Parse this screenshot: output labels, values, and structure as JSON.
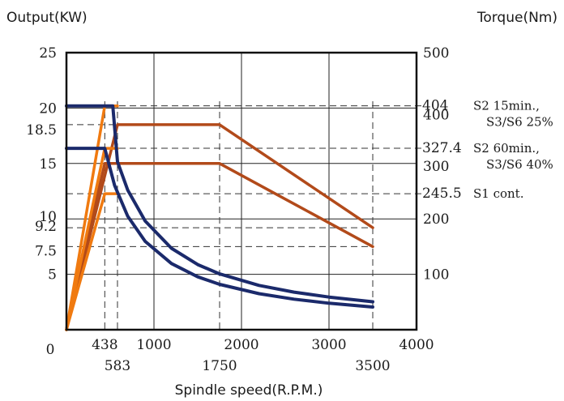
{
  "chart_data": {
    "type": "line",
    "left_axis_label": "Output(KW)",
    "right_axis_label": "Torque(Nm)",
    "xlabel": "Spindle speed(R.P.M.)",
    "xlim": [
      0,
      4000
    ],
    "ylim_left": [
      0,
      25
    ],
    "ylim_right": [
      0,
      500
    ],
    "x_ticks_top": [
      {
        "value": 438,
        "label": "438"
      },
      {
        "value": 1000,
        "label": "1000"
      },
      {
        "value": 2000,
        "label": "2000"
      },
      {
        "value": 3000,
        "label": "3000"
      },
      {
        "value": 4000,
        "label": "4000"
      }
    ],
    "x_ticks_bottom": [
      {
        "value": 583,
        "label": "583"
      },
      {
        "value": 1750,
        "label": "1750"
      },
      {
        "value": 3500,
        "label": "3500"
      }
    ],
    "origin_label": "0",
    "y_ticks_left": [
      {
        "value": 25,
        "label": "25"
      },
      {
        "value": 20,
        "label": "20"
      },
      {
        "value": 18.5,
        "label": "18.5"
      },
      {
        "value": 15,
        "label": "15"
      },
      {
        "value": 10,
        "label": "10"
      },
      {
        "value": 9.2,
        "label": "9.2"
      },
      {
        "value": 7.5,
        "label": "7.5"
      },
      {
        "value": 5,
        "label": "5"
      }
    ],
    "y_ticks_right": [
      {
        "value": 500,
        "label": "500"
      },
      {
        "value": 400,
        "label": "400"
      },
      {
        "value": 300,
        "label": "300"
      },
      {
        "value": 200,
        "label": "200"
      },
      {
        "value": 100,
        "label": "100"
      }
    ],
    "torque_annotations": [
      {
        "value": 404,
        "label": "404",
        "lines": [
          "S2 15min.,",
          "S3/S6 25%"
        ]
      },
      {
        "value": 327.4,
        "label": "327.4",
        "lines": [
          "S2 60min.,",
          "S3/S6 40%"
        ]
      },
      {
        "value": 245.5,
        "label": "245.5",
        "lines": [
          "S1 cont."
        ]
      }
    ],
    "series": [
      {
        "axis": "left",
        "color": "#b24a1a",
        "points": [
          [
            0,
            0
          ],
          [
            583,
            18.5
          ],
          [
            1750,
            18.5
          ],
          [
            3500,
            9.2
          ]
        ]
      },
      {
        "axis": "left",
        "color": "#b24a1a",
        "points": [
          [
            0,
            0
          ],
          [
            438,
            15
          ],
          [
            1750,
            15
          ],
          [
            3500,
            7.5
          ]
        ]
      },
      {
        "axis": "right",
        "color": "#f07a10",
        "points": [
          [
            0,
            0
          ],
          [
            438,
            404
          ],
          [
            583,
            404
          ]
        ]
      },
      {
        "axis": "right",
        "color": "#f07a10",
        "points": [
          [
            0,
            0
          ],
          [
            438,
            327.4
          ],
          [
            583,
            327.4
          ]
        ]
      },
      {
        "axis": "right",
        "color": "#f07a10",
        "points": [
          [
            0,
            0
          ],
          [
            438,
            245.5
          ],
          [
            583,
            245.5
          ]
        ]
      },
      {
        "axis": "right",
        "color": "#1b2a6b",
        "points": [
          [
            0,
            404
          ],
          [
            530,
            404
          ],
          [
            583,
            303
          ],
          [
            700,
            252
          ],
          [
            900,
            196
          ],
          [
            1200,
            147
          ],
          [
            1500,
            117.6
          ],
          [
            1750,
            100.8
          ],
          [
            2200,
            80
          ],
          [
            2600,
            67.9
          ],
          [
            3000,
            58.9
          ],
          [
            3500,
            50.4
          ]
        ]
      },
      {
        "axis": "right",
        "color": "#1b2a6b",
        "points": [
          [
            0,
            327.4
          ],
          [
            438,
            327.4
          ],
          [
            550,
            260.5
          ],
          [
            700,
            204.8
          ],
          [
            900,
            159.3
          ],
          [
            1200,
            119.4
          ],
          [
            1500,
            95.5
          ],
          [
            1750,
            81.9
          ],
          [
            2200,
            65.1
          ],
          [
            2600,
            55.1
          ],
          [
            3000,
            47.8
          ],
          [
            3500,
            41
          ]
        ]
      }
    ],
    "dashed_guides": [
      {
        "type": "h",
        "axis": "right",
        "value": 404,
        "x_to": 3500
      },
      {
        "type": "h",
        "axis": "left",
        "value": 18.5,
        "x_to": 583
      },
      {
        "type": "h",
        "axis": "right",
        "value": 327.4,
        "x_to": 3500
      },
      {
        "type": "h",
        "axis": "right",
        "value": 245.5,
        "x_to": 3500
      },
      {
        "type": "h",
        "axis": "left",
        "value": 9.2,
        "x_to": 3500
      },
      {
        "type": "h",
        "axis": "left",
        "value": 7.5,
        "x_to": 3500
      },
      {
        "type": "v",
        "x": 438
      },
      {
        "type": "v",
        "x": 583
      },
      {
        "type": "v",
        "x": 1750
      },
      {
        "type": "v",
        "x": 3500
      }
    ],
    "grid_x": [
      1000,
      2000,
      3000
    ],
    "grid_y_left": [
      5,
      10,
      15,
      20
    ]
  }
}
